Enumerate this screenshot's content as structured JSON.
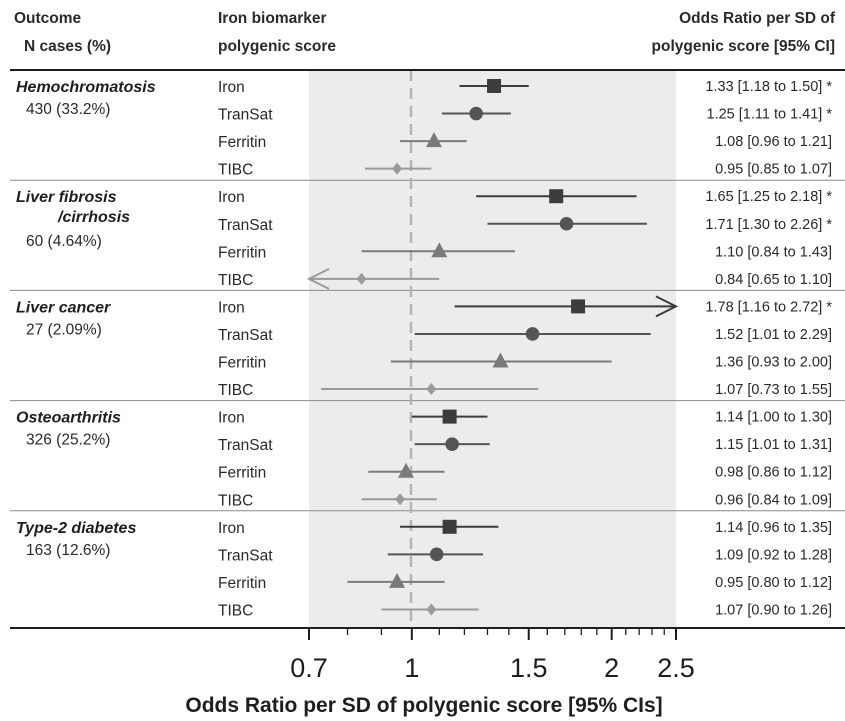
{
  "header": {
    "outcome_col": "Outcome",
    "ncases_col": "N cases (%)",
    "biomarker_col_1": "Iron biomarker",
    "biomarker_col_2": "polygenic score",
    "or_col_1": "Odds Ratio per SD of",
    "or_col_2": "polygenic score [95% CI]"
  },
  "chart_data": {
    "type": "forest",
    "xlabel": "Odds Ratio per SD of polygenic score [95% CIs]",
    "x_scale": "log",
    "xlim": [
      0.7,
      2.5
    ],
    "x_ticks": [
      0.7,
      1,
      1.5,
      2,
      2.5
    ],
    "x_tick_labels": [
      "0.7",
      "1",
      "1.5",
      "2",
      "2.5"
    ],
    "reference_line": 1,
    "series_styles": {
      "Iron": {
        "marker": "square",
        "color": "#3c3c3c"
      },
      "TranSat": {
        "marker": "circle",
        "color": "#555555"
      },
      "Ferritin": {
        "marker": "triangle",
        "color": "#7a7a7a"
      },
      "TIBC": {
        "marker": "diamond",
        "color": "#9a9a9a"
      }
    },
    "groups": [
      {
        "outcome": "Hemochromatosis",
        "outcome_lines": [
          "Hemochromatosis"
        ],
        "n_cases": "430 (33.2%)",
        "rows": [
          {
            "biomarker": "Iron",
            "or": 1.33,
            "lo": 1.18,
            "hi": 1.5,
            "label": "1.33 [1.18 to 1.50] *"
          },
          {
            "biomarker": "TranSat",
            "or": 1.25,
            "lo": 1.11,
            "hi": 1.41,
            "label": "1.25 [1.11 to 1.41] *"
          },
          {
            "biomarker": "Ferritin",
            "or": 1.08,
            "lo": 0.96,
            "hi": 1.21,
            "label": "1.08 [0.96 to 1.21]"
          },
          {
            "biomarker": "TIBC",
            "or": 0.95,
            "lo": 0.85,
            "hi": 1.07,
            "label": "0.95 [0.85 to 1.07]"
          }
        ]
      },
      {
        "outcome": "Liver fibrosis /cirrhosis",
        "outcome_lines": [
          "Liver fibrosis",
          "/cirrhosis"
        ],
        "n_cases": "60 (4.64%)",
        "rows": [
          {
            "biomarker": "Iron",
            "or": 1.65,
            "lo": 1.25,
            "hi": 2.18,
            "label": "1.65 [1.25 to 2.18] *"
          },
          {
            "biomarker": "TranSat",
            "or": 1.71,
            "lo": 1.3,
            "hi": 2.26,
            "label": "1.71 [1.30 to 2.26] *"
          },
          {
            "biomarker": "Ferritin",
            "or": 1.1,
            "lo": 0.84,
            "hi": 1.43,
            "label": "1.10 [0.84 to 1.43]"
          },
          {
            "biomarker": "TIBC",
            "or": 0.84,
            "lo": 0.65,
            "hi": 1.1,
            "label": "0.84 [0.65 to 1.10]"
          }
        ]
      },
      {
        "outcome": "Liver cancer",
        "outcome_lines": [
          "Liver cancer"
        ],
        "n_cases": "27 (2.09%)",
        "rows": [
          {
            "biomarker": "Iron",
            "or": 1.78,
            "lo": 1.16,
            "hi": 2.72,
            "label": "1.78 [1.16 to 2.72] *"
          },
          {
            "biomarker": "TranSat",
            "or": 1.52,
            "lo": 1.01,
            "hi": 2.29,
            "label": "1.52 [1.01 to 2.29]"
          },
          {
            "biomarker": "Ferritin",
            "or": 1.36,
            "lo": 0.93,
            "hi": 2.0,
            "label": "1.36 [0.93 to 2.00]"
          },
          {
            "biomarker": "TIBC",
            "or": 1.07,
            "lo": 0.73,
            "hi": 1.55,
            "label": "1.07 [0.73 to 1.55]"
          }
        ]
      },
      {
        "outcome": "Osteoarthritis",
        "outcome_lines": [
          "Osteoarthritis"
        ],
        "n_cases": "326 (25.2%)",
        "rows": [
          {
            "biomarker": "Iron",
            "or": 1.14,
            "lo": 1.0,
            "hi": 1.3,
            "label": "1.14 [1.00 to 1.30]"
          },
          {
            "biomarker": "TranSat",
            "or": 1.15,
            "lo": 1.01,
            "hi": 1.31,
            "label": "1.15 [1.01 to 1.31]"
          },
          {
            "biomarker": "Ferritin",
            "or": 0.98,
            "lo": 0.86,
            "hi": 1.12,
            "label": "0.98 [0.86 to 1.12]"
          },
          {
            "biomarker": "TIBC",
            "or": 0.96,
            "lo": 0.84,
            "hi": 1.09,
            "label": "0.96 [0.84 to 1.09]"
          }
        ]
      },
      {
        "outcome": "Type-2 diabetes",
        "outcome_lines": [
          "Type-2 diabetes"
        ],
        "n_cases": "163 (12.6%)",
        "rows": [
          {
            "biomarker": "Iron",
            "or": 1.14,
            "lo": 0.96,
            "hi": 1.35,
            "label": "1.14 [0.96 to 1.35]"
          },
          {
            "biomarker": "TranSat",
            "or": 1.09,
            "lo": 0.92,
            "hi": 1.28,
            "label": "1.09 [0.92 to 1.28]"
          },
          {
            "biomarker": "Ferritin",
            "or": 0.95,
            "lo": 0.8,
            "hi": 1.12,
            "label": "0.95 [0.80 to 1.12]"
          },
          {
            "biomarker": "TIBC",
            "or": 1.07,
            "lo": 0.9,
            "hi": 1.26,
            "label": "1.07 [0.90 to 1.26]"
          }
        ]
      }
    ]
  }
}
